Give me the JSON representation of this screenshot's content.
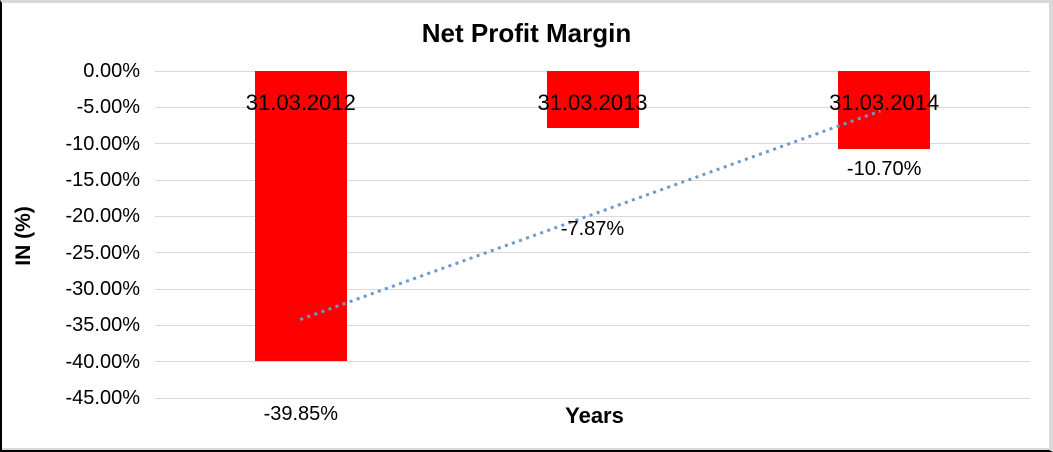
{
  "window": {
    "background": "#ffffff",
    "frame_border_dark": "#000000",
    "frame_border_light": "#d9d9d9"
  },
  "chart_data": {
    "type": "bar",
    "title": "Net Profit Margin",
    "xlabel": "Years",
    "ylabel": "IN (%)",
    "categories": [
      "31.03.2012",
      "31.03.2013",
      "31.03.2014"
    ],
    "values": [
      -39.85,
      -7.87,
      -10.7
    ],
    "value_labels": [
      "-39.85%",
      "-7.87%",
      "-10.70%"
    ],
    "bar_color": "#ff0000",
    "ylim": [
      -45,
      0
    ],
    "yticks": [
      {
        "value": 0,
        "label": "0.00%"
      },
      {
        "value": -5,
        "label": "-5.00%"
      },
      {
        "value": -10,
        "label": "-10.00%"
      },
      {
        "value": -15,
        "label": "-15.00%"
      },
      {
        "value": -20,
        "label": "-20.00%"
      },
      {
        "value": -25,
        "label": "-25.00%"
      },
      {
        "value": -30,
        "label": "-30.00%"
      },
      {
        "value": -35,
        "label": "-35.00%"
      },
      {
        "value": -40,
        "label": "-40.00%"
      },
      {
        "value": -45,
        "label": "-45.00%"
      }
    ],
    "grid": true,
    "gridline_color": "#d9d9d9",
    "legend": "none",
    "trendline": {
      "style": "dotted",
      "color": "#6b99d0",
      "start_value_pct": -34.2,
      "end_value_pct": -5.5
    }
  }
}
